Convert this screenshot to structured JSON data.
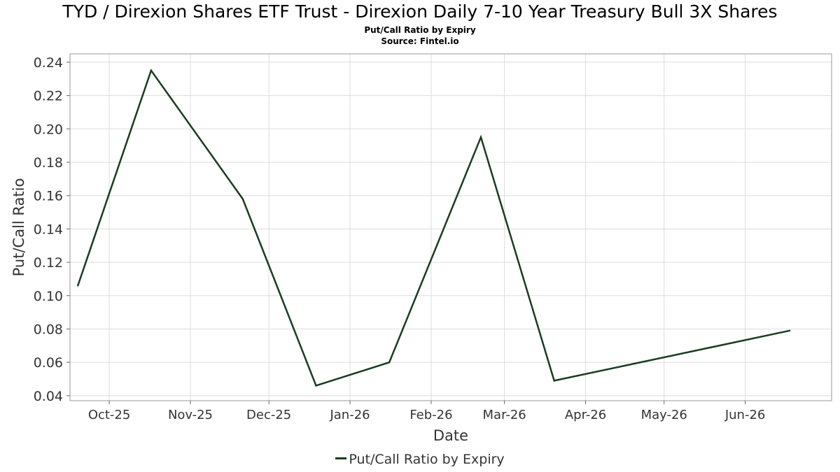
{
  "title": "TYD / Direxion Shares ETF Trust - Direxion Daily 7-10 Year Treasury Bull 3X Shares",
  "subtitle": "Put/Call Ratio by Expiry",
  "source": "Source: Fintel.io",
  "legend": {
    "label": "Put/Call Ratio by Expiry"
  },
  "colors": {
    "line": "#1a3d1f",
    "grid": "#dddddd",
    "frame": "#999999"
  },
  "chart_data": {
    "type": "line",
    "title": "TYD / Direxion Shares ETF Trust - Direxion Daily 7-10 Year Treasury Bull 3X Shares",
    "xlabel": "Date",
    "ylabel": "Put/Call Ratio",
    "grid": true,
    "legend_position": "bottom-center",
    "xlim": [
      "2025-09-16",
      "2026-07-04"
    ],
    "ylim": [
      0.037,
      0.245
    ],
    "x_ticks": [
      {
        "date": "2025-10-01",
        "label": "Oct-25"
      },
      {
        "date": "2025-11-01",
        "label": "Nov-25"
      },
      {
        "date": "2025-12-01",
        "label": "Dec-25"
      },
      {
        "date": "2026-01-01",
        "label": "Jan-26"
      },
      {
        "date": "2026-02-01",
        "label": "Feb-26"
      },
      {
        "date": "2026-03-01",
        "label": "Mar-26"
      },
      {
        "date": "2026-04-01",
        "label": "Apr-26"
      },
      {
        "date": "2026-05-01",
        "label": "May-26"
      },
      {
        "date": "2026-06-01",
        "label": "Jun-26"
      }
    ],
    "y_ticks": [
      {
        "value": 0.04,
        "label": "0.04"
      },
      {
        "value": 0.06,
        "label": "0.06"
      },
      {
        "value": 0.08,
        "label": "0.08"
      },
      {
        "value": 0.1,
        "label": "0.10"
      },
      {
        "value": 0.12,
        "label": "0.12"
      },
      {
        "value": 0.14,
        "label": "0.14"
      },
      {
        "value": 0.16,
        "label": "0.16"
      },
      {
        "value": 0.18,
        "label": "0.18"
      },
      {
        "value": 0.2,
        "label": "0.20"
      },
      {
        "value": 0.22,
        "label": "0.22"
      },
      {
        "value": 0.24,
        "label": "0.24"
      }
    ],
    "series": [
      {
        "name": "Put/Call Ratio by Expiry",
        "x": [
          "2025-09-19",
          "2025-10-17",
          "2025-11-21",
          "2025-12-19",
          "2026-01-16",
          "2026-02-20",
          "2026-03-20",
          "2026-06-18"
        ],
        "y": [
          0.106,
          0.235,
          0.158,
          0.046,
          0.06,
          0.195,
          0.049,
          0.079
        ]
      }
    ]
  }
}
